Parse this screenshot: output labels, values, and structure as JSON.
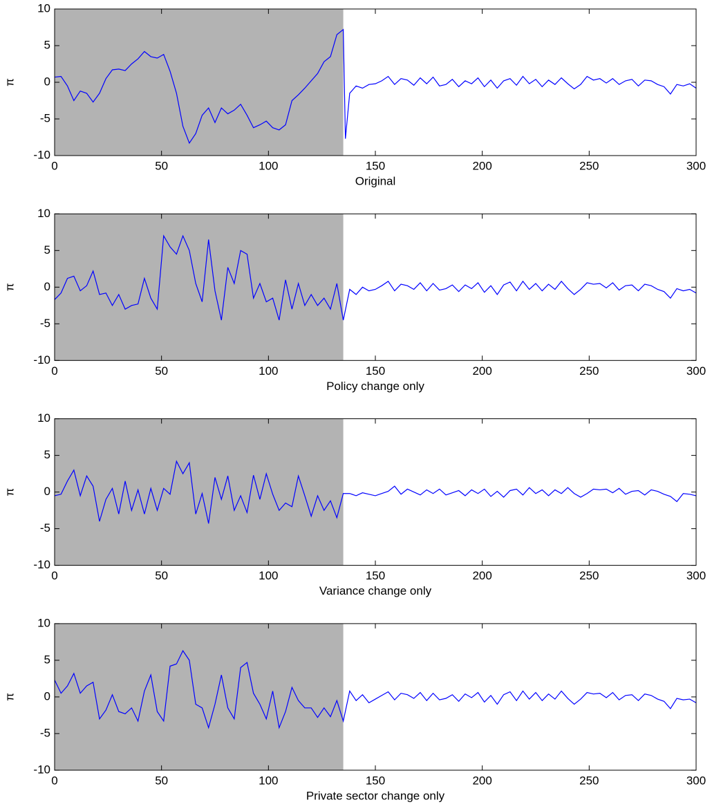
{
  "chart_data": [
    {
      "type": "line",
      "xlabel": "Original",
      "ylabel": "π",
      "xlim": [
        0,
        300
      ],
      "ylim": [
        -10,
        10
      ],
      "xticks": [
        0,
        50,
        100,
        150,
        200,
        250,
        300
      ],
      "yticks": [
        -10,
        -5,
        0,
        5,
        10
      ],
      "shade": {
        "xlim": [
          0,
          135
        ],
        "color": "#b3b3b3"
      },
      "color": "#0000ff",
      "x": [
        0,
        3,
        6,
        9,
        12,
        15,
        18,
        21,
        24,
        27,
        30,
        33,
        36,
        39,
        42,
        45,
        48,
        51,
        54,
        57,
        60,
        63,
        66,
        69,
        72,
        75,
        78,
        81,
        84,
        87,
        90,
        93,
        96,
        99,
        102,
        105,
        108,
        111,
        114,
        117,
        120,
        123,
        126,
        129,
        132,
        135,
        136,
        138,
        141,
        144,
        147,
        150,
        153,
        156,
        159,
        162,
        165,
        168,
        171,
        174,
        177,
        180,
        183,
        186,
        189,
        192,
        195,
        198,
        201,
        204,
        207,
        210,
        213,
        216,
        219,
        222,
        225,
        228,
        231,
        234,
        237,
        240,
        243,
        246,
        249,
        252,
        255,
        258,
        261,
        264,
        267,
        270,
        273,
        276,
        279,
        282,
        285,
        288,
        291,
        294,
        297,
        300
      ],
      "values": [
        0.7,
        0.8,
        -0.5,
        -2.5,
        -1.2,
        -1.5,
        -2.7,
        -1.5,
        0.5,
        1.7,
        1.8,
        1.6,
        2.5,
        3.2,
        4.2,
        3.5,
        3.3,
        3.8,
        1.5,
        -1.5,
        -6,
        -8.3,
        -7,
        -4.5,
        -3.5,
        -5.5,
        -3.5,
        -4.3,
        -3.8,
        -3,
        -4.5,
        -6.2,
        -5.8,
        -5.3,
        -6.2,
        -6.5,
        -5.8,
        -2.5,
        -1.7,
        -0.8,
        0.2,
        1.2,
        2.8,
        3.5,
        6.5,
        7.2,
        -7.7,
        -1.5,
        -0.5,
        -0.8,
        -0.3,
        -0.2,
        0.2,
        0.8,
        -0.3,
        0.5,
        0.3,
        -0.4,
        0.6,
        -0.2,
        0.7,
        -0.5,
        -0.3,
        0.4,
        -0.6,
        0.2,
        -0.2,
        0.6,
        -0.6,
        0.3,
        -0.8,
        0.2,
        0.5,
        -0.4,
        0.8,
        -0.2,
        0.4,
        -0.6,
        0.3,
        -0.3,
        0.6,
        -0.2,
        -0.9,
        -0.3,
        0.8,
        0.3,
        0.5,
        -0.1,
        0.5,
        -0.3,
        0.2,
        0.4,
        -0.5,
        0.3,
        0.2,
        -0.3,
        -0.6,
        -1.6,
        -0.3,
        -0.5,
        -0.2,
        -0.8
      ]
    },
    {
      "type": "line",
      "xlabel": "Policy change only",
      "ylabel": "π",
      "xlim": [
        0,
        300
      ],
      "ylim": [
        -10,
        10
      ],
      "xticks": [
        0,
        50,
        100,
        150,
        200,
        250,
        300
      ],
      "yticks": [
        -10,
        -5,
        0,
        5,
        10
      ],
      "shade": {
        "xlim": [
          0,
          135
        ],
        "color": "#b3b3b3"
      },
      "color": "#0000ff",
      "x": [
        0,
        3,
        6,
        9,
        12,
        15,
        18,
        21,
        24,
        27,
        30,
        33,
        36,
        39,
        42,
        45,
        48,
        51,
        54,
        57,
        60,
        63,
        66,
        69,
        72,
        75,
        78,
        81,
        84,
        87,
        90,
        93,
        96,
        99,
        102,
        105,
        108,
        111,
        114,
        117,
        120,
        123,
        126,
        129,
        132,
        135,
        138,
        141,
        144,
        147,
        150,
        153,
        156,
        159,
        162,
        165,
        168,
        171,
        174,
        177,
        180,
        183,
        186,
        189,
        192,
        195,
        198,
        201,
        204,
        207,
        210,
        213,
        216,
        219,
        222,
        225,
        228,
        231,
        234,
        237,
        240,
        243,
        246,
        249,
        252,
        255,
        258,
        261,
        264,
        267,
        270,
        273,
        276,
        279,
        282,
        285,
        288,
        291,
        294,
        297,
        300
      ],
      "values": [
        -1.7,
        -0.8,
        1.2,
        1.5,
        -0.5,
        0.2,
        2.2,
        -1,
        -0.8,
        -2.5,
        -1,
        -3,
        -2.5,
        -2.3,
        1.2,
        -1.5,
        -3,
        7,
        5.5,
        4.5,
        7,
        5,
        0.5,
        -2,
        6.5,
        -0.5,
        -4.5,
        2.7,
        0.5,
        5,
        4.5,
        -1.5,
        0.5,
        -2,
        -1.5,
        -4.5,
        1,
        -3,
        0.5,
        -2.5,
        -1,
        -2.5,
        -1.5,
        -3,
        0.5,
        -4.5,
        -0.3,
        -1,
        0,
        -0.5,
        -0.3,
        0.2,
        0.8,
        -0.5,
        0.4,
        0.2,
        -0.3,
        0.6,
        -0.5,
        0.5,
        -0.4,
        -0.2,
        0.3,
        -0.6,
        0.3,
        -0.2,
        0.6,
        -0.7,
        0.2,
        -1,
        0.3,
        0.7,
        -0.5,
        0.8,
        -0.3,
        0.5,
        -0.5,
        0.4,
        -0.3,
        0.8,
        -0.2,
        -1,
        -0.3,
        0.6,
        0.4,
        0.5,
        -0.1,
        0.6,
        -0.4,
        0.2,
        0.3,
        -0.5,
        0.4,
        0.2,
        -0.3,
        -0.6,
        -1.5,
        -0.2,
        -0.5,
        -0.3,
        -0.8
      ]
    },
    {
      "type": "line",
      "xlabel": "Variance change only",
      "ylabel": "π",
      "xlim": [
        0,
        300
      ],
      "ylim": [
        -10,
        10
      ],
      "xticks": [
        0,
        50,
        100,
        150,
        200,
        250,
        300
      ],
      "yticks": [
        -10,
        -5,
        0,
        5,
        10
      ],
      "shade": {
        "xlim": [
          0,
          135
        ],
        "color": "#b3b3b3"
      },
      "color": "#0000ff",
      "x": [
        0,
        3,
        6,
        9,
        12,
        15,
        18,
        21,
        24,
        27,
        30,
        33,
        36,
        39,
        42,
        45,
        48,
        51,
        54,
        57,
        60,
        63,
        66,
        69,
        72,
        75,
        78,
        81,
        84,
        87,
        90,
        93,
        96,
        99,
        102,
        105,
        108,
        111,
        114,
        117,
        120,
        123,
        126,
        129,
        132,
        135,
        138,
        141,
        144,
        147,
        150,
        153,
        156,
        159,
        162,
        165,
        168,
        171,
        174,
        177,
        180,
        183,
        186,
        189,
        192,
        195,
        198,
        201,
        204,
        207,
        210,
        213,
        216,
        219,
        222,
        225,
        228,
        231,
        234,
        237,
        240,
        243,
        246,
        249,
        252,
        255,
        258,
        261,
        264,
        267,
        270,
        273,
        276,
        279,
        282,
        285,
        288,
        291,
        294,
        297,
        300
      ],
      "values": [
        -0.5,
        -0.3,
        1.5,
        3,
        -0.5,
        2.2,
        0.8,
        -4,
        -1,
        0.5,
        -3,
        1.5,
        -2.5,
        0.3,
        -3,
        0.5,
        -2.5,
        0.5,
        -0.3,
        4.2,
        2.5,
        4,
        -3,
        -0.2,
        -4.3,
        2,
        -1,
        2.2,
        -2.5,
        -0.5,
        -2.8,
        2.3,
        -1,
        2.5,
        -0.3,
        -2.5,
        -1.5,
        -2,
        2.2,
        -0.5,
        -3.3,
        -0.5,
        -2.5,
        -1.2,
        -3.5,
        -0.2,
        -0.2,
        -0.5,
        -0.1,
        -0.3,
        -0.5,
        -0.2,
        0.1,
        0.8,
        -0.3,
        0.4,
        0,
        -0.4,
        0.3,
        -0.2,
        0.4,
        -0.4,
        -0.1,
        0.2,
        -0.5,
        0.3,
        -0.2,
        0.4,
        -0.6,
        0.1,
        -0.7,
        0.2,
        0.4,
        -0.4,
        0.6,
        -0.2,
        0.3,
        -0.5,
        0.3,
        -0.2,
        0.6,
        -0.2,
        -0.7,
        -0.2,
        0.4,
        0.3,
        0.4,
        -0.1,
        0.5,
        -0.3,
        0.1,
        0.2,
        -0.4,
        0.3,
        0.1,
        -0.3,
        -0.6,
        -1.3,
        -0.2,
        -0.3,
        -0.5
      ]
    },
    {
      "type": "line",
      "xlabel": "Private sector change only",
      "ylabel": "π",
      "xlim": [
        0,
        300
      ],
      "ylim": [
        -10,
        10
      ],
      "xticks": [
        0,
        50,
        100,
        150,
        200,
        250,
        300
      ],
      "yticks": [
        -10,
        -5,
        0,
        5,
        10
      ],
      "shade": {
        "xlim": [
          0,
          135
        ],
        "color": "#b3b3b3"
      },
      "color": "#0000ff",
      "x": [
        0,
        3,
        6,
        9,
        12,
        15,
        18,
        21,
        24,
        27,
        30,
        33,
        36,
        39,
        42,
        45,
        48,
        51,
        54,
        57,
        60,
        63,
        66,
        69,
        72,
        75,
        78,
        81,
        84,
        87,
        90,
        93,
        96,
        99,
        102,
        105,
        108,
        111,
        114,
        117,
        120,
        123,
        126,
        129,
        132,
        135,
        138,
        141,
        144,
        147,
        150,
        153,
        156,
        159,
        162,
        165,
        168,
        171,
        174,
        177,
        180,
        183,
        186,
        189,
        192,
        195,
        198,
        201,
        204,
        207,
        210,
        213,
        216,
        219,
        222,
        225,
        228,
        231,
        234,
        237,
        240,
        243,
        246,
        249,
        252,
        255,
        258,
        261,
        264,
        267,
        270,
        273,
        276,
        279,
        282,
        285,
        288,
        291,
        294,
        297,
        300
      ],
      "values": [
        2.3,
        0.5,
        1.5,
        3.2,
        0.5,
        1.5,
        2,
        -3,
        -1.8,
        0.3,
        -2,
        -2.3,
        -1.5,
        -3.3,
        0.8,
        3,
        -2,
        -3.3,
        4.2,
        4.5,
        6.3,
        5,
        -1,
        -1.5,
        -4.2,
        -1,
        3,
        -1.5,
        -3,
        4,
        4.7,
        0.5,
        -1,
        -3,
        0.8,
        -4.2,
        -2,
        1.3,
        -0.5,
        -1.5,
        -1.5,
        -2.8,
        -1.5,
        -2.7,
        -0.5,
        -3.3,
        0.8,
        -0.5,
        0.3,
        -0.8,
        -0.3,
        0.2,
        0.7,
        -0.4,
        0.5,
        0.3,
        -0.2,
        0.6,
        -0.5,
        0.5,
        -0.4,
        -0.2,
        0.3,
        -0.6,
        0.4,
        -0.1,
        0.6,
        -0.7,
        0.2,
        -1,
        0.3,
        0.7,
        -0.5,
        0.8,
        -0.3,
        0.6,
        -0.5,
        0.4,
        -0.3,
        0.8,
        -0.2,
        -1,
        -0.3,
        0.6,
        0.4,
        0.5,
        -0.1,
        0.6,
        -0.4,
        0.2,
        0.3,
        -0.5,
        0.4,
        0.2,
        -0.3,
        -0.6,
        -1.6,
        -0.2,
        -0.4,
        -0.3,
        -0.8
      ]
    }
  ]
}
